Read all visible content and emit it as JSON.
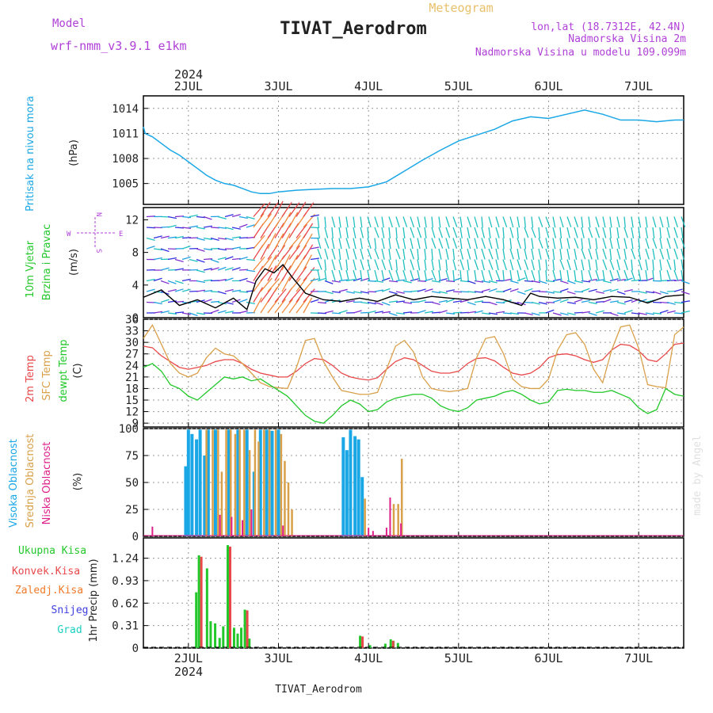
{
  "header": {
    "model_label": "Model",
    "model_name": "wrf-nmm_v3.9.1  e1km",
    "meteogram": "Meteogram",
    "station": "TIVAT_Aerodrom",
    "lonlat": "lon,lat (18.7312E, 42.4N)",
    "elevation": "Nadmorska Visina 2m",
    "model_elevation": "Nadmorska Visina u modelu 109.099m",
    "footer_station": "TIVAT_Aerodrom",
    "year_top": "2024",
    "year_bottom": "2024",
    "watermark": "made by Angel"
  },
  "colors": {
    "pressure": "#1aa7e6",
    "temp2m": "#e8484a",
    "sfc": "#d9a04a",
    "dewpt": "#22c82a",
    "wind_label": "#22c82a",
    "purple": "#b040d8",
    "convective": "#e8484a",
    "freezing": "#f07a2a",
    "snow": "#4040e0",
    "grad": "#1ad0c0"
  },
  "panel_labels": {
    "pressure": {
      "name": "Pritisak na nivou mora",
      "unit": "(hPa)"
    },
    "wind": {
      "name1": "10m Vjetar",
      "name2": "Brzina i Pravac",
      "unit": "(m/s)",
      "compass_w": "W",
      "compass_e": "E",
      "compass_n": "N",
      "compass_s": "S"
    },
    "temp": {
      "t2m": "2m Temp",
      "sfc": "SFC Temp",
      "dew": "dewpt Temp",
      "unit": "(C)"
    },
    "cloud": {
      "high": "Visoka Oblacnost",
      "mid": "Srednja Oblacnost",
      "low": "Niska Oblacnost",
      "unit": "(%)"
    },
    "precip": {
      "total": "Ukupna Kisa",
      "conv": "Konvek.Kisa",
      "freezing": "Zaledj.Kisa",
      "snow": "Snijeg",
      "grad": "Grad",
      "unit": "1hr Precip (mm)"
    }
  },
  "chart_data": [
    {
      "type": "line",
      "title": "Pritisak na nivou mora",
      "ylabel": "(hPa)",
      "ylim": [
        1002.5,
        1015.5
      ],
      "yticks": [
        1005,
        1008,
        1011,
        1014
      ],
      "x_days": [
        1.5,
        1.52,
        1.6,
        1.7,
        1.8,
        1.9,
        2.0,
        2.1,
        2.2,
        2.3,
        2.4,
        2.5,
        2.6,
        2.7,
        2.8,
        2.9,
        3.0,
        3.2,
        3.4,
        3.6,
        3.8,
        4.0,
        4.2,
        4.4,
        4.6,
        4.8,
        5.0,
        5.2,
        5.4,
        5.6,
        5.8,
        6.0,
        6.2,
        6.4,
        6.6,
        6.8,
        7.0,
        7.2,
        7.4,
        7.5
      ],
      "series": [
        {
          "values": [
            1011.8,
            1011.0,
            1010.6,
            1009.8,
            1009.0,
            1008.4,
            1007.6,
            1006.8,
            1006.0,
            1005.4,
            1005.0,
            1004.8,
            1004.4,
            1004.0,
            1003.8,
            1003.8,
            1004.0,
            1004.2,
            1004.3,
            1004.4,
            1004.4,
            1004.6,
            1005.2,
            1006.5,
            1007.8,
            1009.0,
            1010.1,
            1010.8,
            1011.5,
            1012.5,
            1013.0,
            1012.8,
            1013.3,
            1013.8,
            1013.3,
            1012.6,
            1012.6,
            1012.4,
            1012.6,
            1012.6
          ]
        }
      ]
    },
    {
      "type": "line",
      "title": "10m Vjetar Brzina i Pravac",
      "ylabel": "(m/s)",
      "ylim": [
        0,
        13.5
      ],
      "yticks": [
        0,
        4,
        8,
        12
      ],
      "x_days": [
        1.5,
        1.7,
        1.9,
        2.1,
        2.3,
        2.5,
        2.65,
        2.75,
        2.85,
        2.95,
        3.05,
        3.15,
        3.3,
        3.5,
        3.7,
        3.9,
        4.1,
        4.3,
        4.5,
        4.7,
        4.9,
        5.1,
        5.3,
        5.5,
        5.7,
        5.8,
        5.9,
        6.1,
        6.3,
        6.5,
        6.7,
        6.9,
        7.1,
        7.3,
        7.5
      ],
      "series": [
        {
          "values": [
            2.5,
            3.4,
            1.5,
            2.2,
            1.2,
            2.4,
            1.0,
            4.5,
            6.0,
            5.5,
            6.5,
            5.0,
            3.0,
            2.2,
            2.0,
            2.4,
            2.0,
            2.8,
            2.2,
            2.6,
            2.4,
            2.2,
            2.6,
            2.2,
            1.5,
            3.0,
            2.6,
            2.4,
            2.5,
            2.2,
            2.6,
            2.5,
            1.8,
            2.6,
            2.8
          ]
        }
      ]
    },
    {
      "type": "line",
      "title": "2m Temp, SFC Temp, dewpt Temp",
      "ylabel": "(C)",
      "ylim": [
        8,
        36
      ],
      "yticks": [
        9,
        12,
        15,
        18,
        21,
        24,
        27,
        30,
        33,
        36
      ],
      "x_days": [
        1.5,
        1.6,
        1.7,
        1.8,
        1.9,
        2.0,
        2.1,
        2.2,
        2.3,
        2.4,
        2.5,
        2.6,
        2.7,
        2.8,
        2.9,
        3.0,
        3.1,
        3.2,
        3.3,
        3.4,
        3.5,
        3.6,
        3.7,
        3.8,
        3.9,
        4.0,
        4.1,
        4.2,
        4.3,
        4.4,
        4.5,
        4.6,
        4.7,
        4.8,
        4.9,
        5.0,
        5.1,
        5.2,
        5.3,
        5.4,
        5.5,
        5.6,
        5.7,
        5.8,
        5.9,
        6.0,
        6.1,
        6.2,
        6.3,
        6.4,
        6.5,
        6.6,
        6.7,
        6.8,
        6.9,
        7.0,
        7.1,
        7.2,
        7.3,
        7.4,
        7.5
      ],
      "series": [
        {
          "name": "2m Temp",
          "values": [
            29.0,
            28.6,
            26.5,
            25.0,
            23.5,
            23.0,
            23.5,
            24.0,
            25.0,
            25.5,
            25.5,
            24.5,
            23.0,
            22.0,
            21.5,
            21.0,
            21.0,
            22.5,
            24.5,
            25.8,
            25.5,
            24.0,
            22.0,
            21.0,
            20.5,
            20.2,
            20.8,
            23.0,
            25.0,
            26.0,
            25.5,
            24.0,
            22.5,
            22.0,
            22.0,
            22.5,
            24.5,
            25.8,
            26.0,
            25.2,
            23.5,
            22.0,
            21.5,
            22.0,
            23.5,
            26.0,
            26.8,
            27.0,
            26.5,
            25.5,
            24.8,
            25.5,
            28.0,
            29.5,
            29.2,
            27.8,
            25.5,
            25.0,
            27.0,
            29.5,
            29.8
          ]
        },
        {
          "name": "SFC Temp",
          "values": [
            31.0,
            34.5,
            29.5,
            24.5,
            22.0,
            21.0,
            22.0,
            26.0,
            28.5,
            27.0,
            26.5,
            24.5,
            22.0,
            19.5,
            18.5,
            18.2,
            18.0,
            23.5,
            30.5,
            31.0,
            25.0,
            21.0,
            17.5,
            17.0,
            16.5,
            16.5,
            17.0,
            23.0,
            29.0,
            30.5,
            27.5,
            21.0,
            18.0,
            17.5,
            17.2,
            17.5,
            18.0,
            26.0,
            31.0,
            31.5,
            27.0,
            20.5,
            18.5,
            18.0,
            18.0,
            20.5,
            28.0,
            32.0,
            32.5,
            29.5,
            23.0,
            19.5,
            28.0,
            34.0,
            34.5,
            28.5,
            19.0,
            18.5,
            18.2,
            32.0,
            34.0
          ]
        },
        {
          "name": "dewpt Temp",
          "values": [
            23.5,
            24.5,
            22.5,
            19.0,
            18.0,
            16.0,
            15.0,
            17.0,
            19.0,
            21.0,
            20.5,
            21.0,
            20.0,
            20.5,
            19.0,
            17.5,
            16.0,
            13.5,
            11.0,
            9.5,
            9.0,
            11.0,
            13.5,
            15.0,
            14.0,
            12.0,
            12.5,
            14.5,
            15.5,
            16.0,
            16.5,
            16.5,
            15.5,
            13.5,
            12.5,
            12.0,
            13.0,
            15.0,
            15.5,
            16.0,
            17.0,
            17.5,
            16.5,
            15.0,
            14.0,
            14.5,
            17.5,
            17.8,
            17.5,
            17.5,
            17.0,
            17.0,
            17.5,
            16.5,
            15.5,
            13.0,
            11.5,
            12.5,
            18.0,
            16.5,
            16.0
          ]
        }
      ]
    },
    {
      "type": "bar",
      "title": "Visoka / Srednja / Niska Oblacnost",
      "ylabel": "(%)",
      "ylim": [
        0,
        100
      ],
      "yticks": [
        0,
        25,
        50,
        75,
        100
      ],
      "series": [
        {
          "name": "Visoka Oblacnost",
          "x_days": [
            1.97,
            2.0,
            2.04,
            2.09,
            2.13,
            2.18,
            2.22,
            2.3,
            2.45,
            2.55,
            2.65,
            2.73,
            2.8,
            2.87,
            2.93,
            3.0,
            3.72,
            3.76,
            3.8,
            3.85,
            3.89,
            3.93
          ],
          "values": [
            65,
            99,
            95,
            90,
            99,
            75,
            99,
            99,
            99,
            99,
            99,
            60,
            99,
            99,
            98,
            99,
            92,
            80,
            99,
            93,
            90,
            55
          ]
        },
        {
          "name": "Srednja Oblacnost",
          "x_days": [
            2.2,
            2.27,
            2.33,
            2.37,
            2.42,
            2.47,
            2.52,
            2.57,
            2.62,
            2.68,
            2.74,
            2.78,
            2.84,
            2.9,
            2.97,
            3.03,
            3.07,
            3.11,
            3.15,
            3.96,
            4.28,
            4.33,
            4.37
          ],
          "values": [
            99,
            99,
            99,
            60,
            99,
            99,
            95,
            99,
            99,
            80,
            99,
            88,
            99,
            99,
            99,
            95,
            70,
            50,
            25,
            35,
            30,
            30,
            72
          ]
        },
        {
          "name": "Niska Oblacnost",
          "x_days": [
            1.6,
            2.35,
            2.48,
            2.6,
            2.7,
            3.05,
            4.0,
            4.05,
            4.2,
            4.24,
            4.36
          ],
          "values": [
            9,
            20,
            18,
            15,
            25,
            10,
            8,
            5,
            8,
            36,
            12
          ]
        }
      ]
    },
    {
      "type": "bar",
      "title": "1hr Precip",
      "ylabel": "1hr Precip (mm)",
      "ylim": [
        0,
        1.52
      ],
      "yticks": [
        0,
        0.31,
        0.62,
        0.93,
        1.24
      ],
      "series": [
        {
          "name": "Ukupna Kisa",
          "x_days": [
            2.1,
            2.13,
            2.22,
            2.26,
            2.31,
            2.36,
            2.4,
            2.45,
            2.47,
            2.52,
            2.56,
            2.6,
            2.64,
            2.69,
            3.92,
            4.03,
            4.2,
            4.26,
            4.29,
            4.34
          ],
          "values": [
            0.77,
            1.28,
            1.1,
            0.37,
            0.34,
            0.14,
            0.3,
            1.42,
            0.22,
            0.28,
            0.2,
            0.28,
            0.53,
            0.13,
            0.17,
            0.04,
            0.06,
            0.12,
            0.1,
            0.07
          ]
        },
        {
          "name": "Konvek.Kisa",
          "x_days": [
            2.13,
            2.45,
            2.64,
            3.92,
            4.26
          ],
          "values": [
            1.26,
            1.4,
            0.52,
            0.16,
            0.1
          ]
        }
      ]
    }
  ],
  "x_axis": {
    "ticks": [
      {
        "day": 2,
        "label": "2JUL"
      },
      {
        "day": 3,
        "label": "3JUL"
      },
      {
        "day": 4,
        "label": "4JUL"
      },
      {
        "day": 5,
        "label": "5JUL"
      },
      {
        "day": 6,
        "label": "6JUL"
      },
      {
        "day": 7,
        "label": "7JUL"
      }
    ],
    "range_days": [
      1.5,
      7.5
    ]
  }
}
